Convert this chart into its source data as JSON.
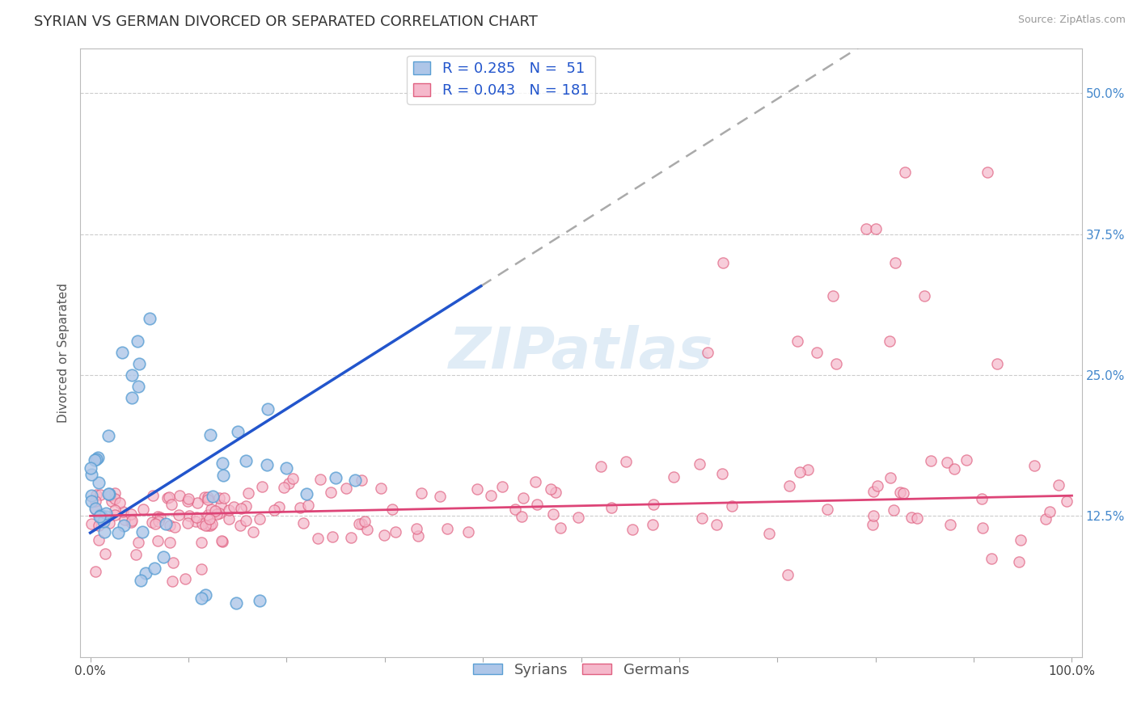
{
  "title": "SYRIAN VS GERMAN DIVORCED OR SEPARATED CORRELATION CHART",
  "source": "Source: ZipAtlas.com",
  "ylabel": "Divorced or Separated",
  "xlim": [
    0.0,
    1.0
  ],
  "ylim": [
    0.0,
    0.54
  ],
  "xtick_positions": [
    0.0,
    1.0
  ],
  "xticklabels": [
    "0.0%",
    "100.0%"
  ],
  "ytick_positions": [
    0.125,
    0.25,
    0.375,
    0.5
  ],
  "yticklabels": [
    "12.5%",
    "25.0%",
    "37.5%",
    "50.0%"
  ],
  "legend_r_syrian": "0.285",
  "legend_n_syrian": "51",
  "legend_r_german": "0.043",
  "legend_n_german": "181",
  "syrian_color": "#aec6e8",
  "german_color": "#f5b8cb",
  "syrian_edge": "#5a9fd4",
  "german_edge": "#e06080",
  "trendline_syrian_color": "#2255cc",
  "trendline_german_color": "#dd4477",
  "trendline_dashed_color": "#aaaaaa",
  "background_color": "#ffffff",
  "grid_color": "#cccccc",
  "watermark_text": "ZIPatlas",
  "title_fontsize": 13,
  "label_fontsize": 11,
  "tick_fontsize": 11,
  "legend_fontsize": 13,
  "ytick_color": "#4488cc",
  "xtick_color": "#444444"
}
